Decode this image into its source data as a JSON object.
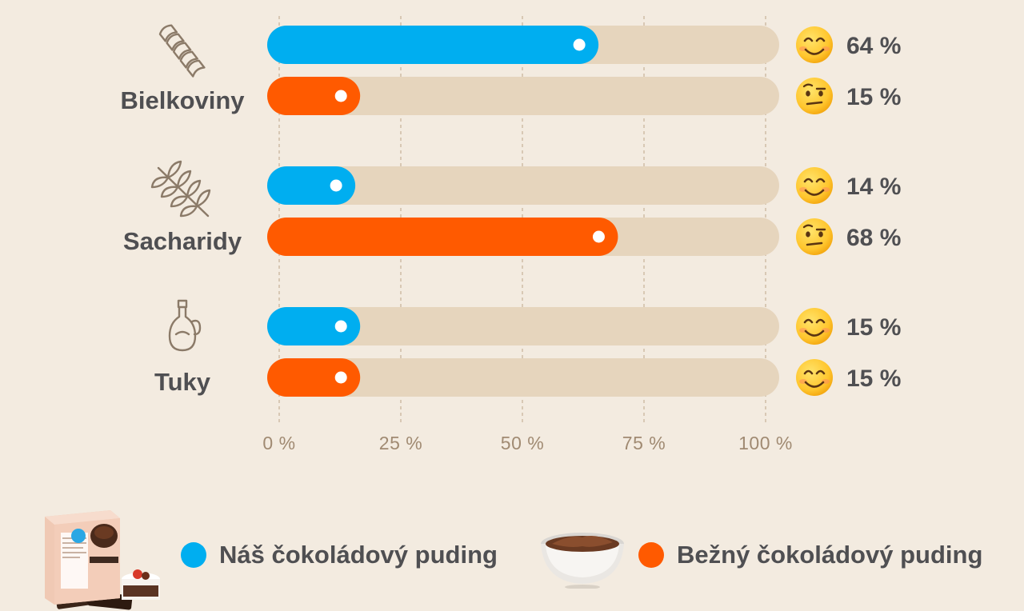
{
  "chart_data": {
    "type": "bar",
    "orientation": "horizontal",
    "categories": [
      "Bielkoviny",
      "Sacharidy",
      "Tuky"
    ],
    "series": [
      {
        "name": "Náš čokoládový puding",
        "values": [
          64,
          14,
          15
        ],
        "color": "#00aef0"
      },
      {
        "name": "Bežný čokoládový puding",
        "values": [
          15,
          68,
          15
        ],
        "color": "#ff5a00"
      }
    ],
    "value_labels": [
      [
        "64 %",
        "15 %"
      ],
      [
        "14 %",
        "68 %"
      ],
      [
        "15 %",
        "15 %"
      ]
    ],
    "emoji_faces": [
      [
        "smiling-face-icon",
        "raised-eyebrow-face-icon"
      ],
      [
        "smiling-face-icon",
        "raised-eyebrow-face-icon"
      ],
      [
        "smiling-face-icon",
        "smiling-face-icon"
      ]
    ],
    "category_icons": [
      "pasta-icon",
      "wheat-icon",
      "oil-bottle-icon"
    ],
    "xlim": [
      0,
      100
    ],
    "ticks": [
      0,
      25,
      50,
      75,
      100
    ],
    "tick_labels": [
      "0 %",
      "25 %",
      "50 %",
      "75 %",
      "100 %"
    ],
    "grid": "vertical-dashed",
    "legend_placement": "bottom",
    "track_color": "#e6d5bd",
    "background": "#f3ebe0"
  },
  "legend": {
    "items": [
      {
        "label": "Náš čokoládový puding",
        "color": "#00aef0",
        "image_icon": "product-box-icon"
      },
      {
        "label": "Bežný čokoládový puding",
        "color": "#ff5a00",
        "image_icon": "pudding-bowl-icon"
      }
    ]
  }
}
